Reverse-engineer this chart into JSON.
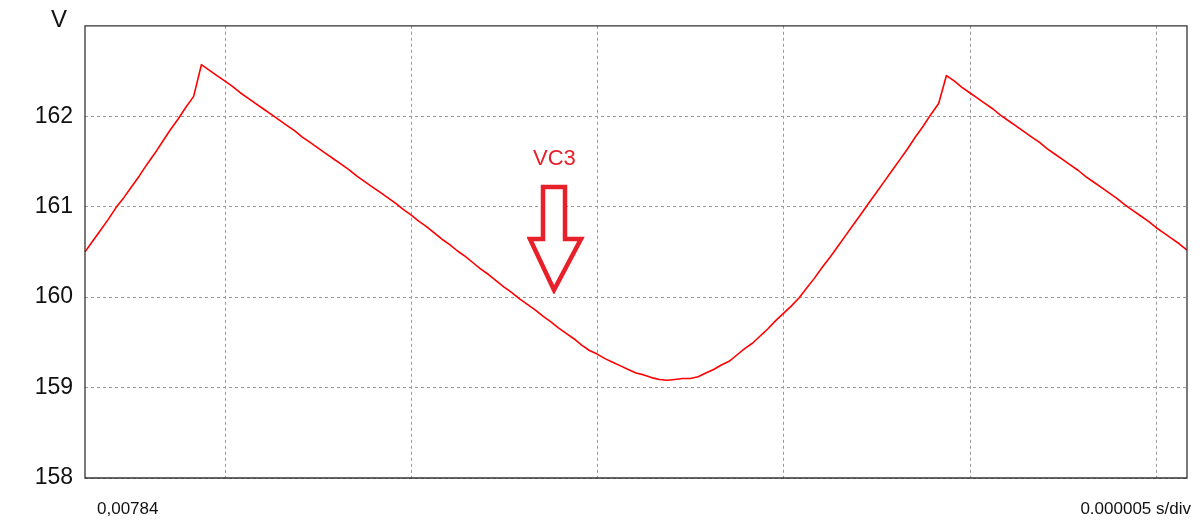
{
  "chart_data": {
    "type": "line",
    "ylabel": "V",
    "xlabel": "0.000005 s/div",
    "annotations": [
      "VC3",
      "0,00784"
    ],
    "categories": [
      null,
      null,
      null,
      null,
      null,
      null,
      null,
      null,
      null,
      null,
      null,
      null,
      null,
      null,
      null,
      null,
      null,
      null,
      null,
      null,
      null,
      null,
      null,
      null,
      null,
      null,
      null,
      null,
      null,
      null,
      null,
      null,
      null,
      null,
      null,
      null,
      null,
      null,
      null,
      null,
      null,
      null,
      null,
      null,
      null,
      null,
      null,
      null,
      null,
      null,
      null,
      null,
      null,
      null,
      null,
      null,
      null,
      null,
      null,
      null,
      null,
      null,
      null,
      null,
      null,
      null,
      null,
      null,
      null,
      null,
      null,
      null,
      null,
      null,
      null,
      null,
      null,
      null,
      null,
      null,
      null,
      null,
      null,
      null,
      null,
      null,
      null,
      null,
      null,
      null,
      null,
      null,
      null,
      null,
      null,
      null,
      null,
      null,
      null,
      null,
      null,
      null,
      null,
      null,
      null,
      null,
      null,
      null,
      null,
      null,
      null,
      null,
      null,
      null,
      null,
      null,
      null,
      null,
      null,
      null,
      null,
      null,
      null,
      null,
      null,
      null,
      null,
      null,
      null,
      null,
      null,
      null,
      null,
      null,
      null,
      null,
      null,
      null,
      null,
      null,
      null,
      null,
      null
    ],
    "series": [
      {
        "color": "#ff0000",
        "values": [
          160.5,
          160.62,
          160.74,
          160.86,
          160.99,
          161.1,
          161.22,
          161.34,
          161.47,
          161.59,
          161.72,
          161.85,
          161.97,
          162.1,
          162.22,
          162.57,
          162.51,
          162.45,
          162.39,
          162.33,
          162.26,
          162.2,
          162.14,
          162.08,
          162.02,
          161.96,
          161.9,
          161.84,
          161.77,
          161.71,
          161.65,
          161.59,
          161.53,
          161.47,
          161.41,
          161.34,
          161.28,
          161.22,
          161.16,
          161.1,
          161.04,
          160.97,
          160.91,
          160.84,
          160.78,
          160.71,
          160.64,
          160.58,
          160.51,
          160.45,
          160.38,
          160.31,
          160.25,
          160.18,
          160.11,
          160.05,
          159.98,
          159.92,
          159.86,
          159.79,
          159.73,
          159.66,
          159.6,
          159.54,
          159.47,
          159.41,
          159.37,
          159.32,
          159.28,
          159.24,
          159.2,
          159.16,
          159.14,
          159.11,
          159.09,
          159.08,
          159.09,
          159.1,
          159.1,
          159.12,
          159.16,
          159.2,
          159.25,
          159.29,
          159.36,
          159.43,
          159.49,
          159.57,
          159.65,
          159.74,
          159.82,
          159.9,
          159.99,
          160.1,
          160.21,
          160.33,
          160.44,
          160.56,
          160.68,
          160.8,
          160.92,
          161.04,
          161.16,
          161.28,
          161.4,
          161.52,
          161.64,
          161.77,
          161.89,
          162.02,
          162.14,
          162.45,
          162.39,
          162.32,
          162.26,
          162.2,
          162.14,
          162.08,
          162.01,
          161.95,
          161.89,
          161.83,
          161.77,
          161.71,
          161.64,
          161.58,
          161.52,
          161.46,
          161.4,
          161.33,
          161.27,
          161.21,
          161.15,
          161.09,
          161.02,
          160.96,
          160.9,
          160.84,
          160.77,
          160.71,
          160.65,
          160.59,
          160.52
        ]
      }
    ],
    "ylim": [
      158,
      163
    ],
    "yticks": [
      158,
      159,
      160,
      161,
      162
    ],
    "tick_labels": "y",
    "grid": true,
    "marker": "none",
    "line_style": "solid"
  }
}
